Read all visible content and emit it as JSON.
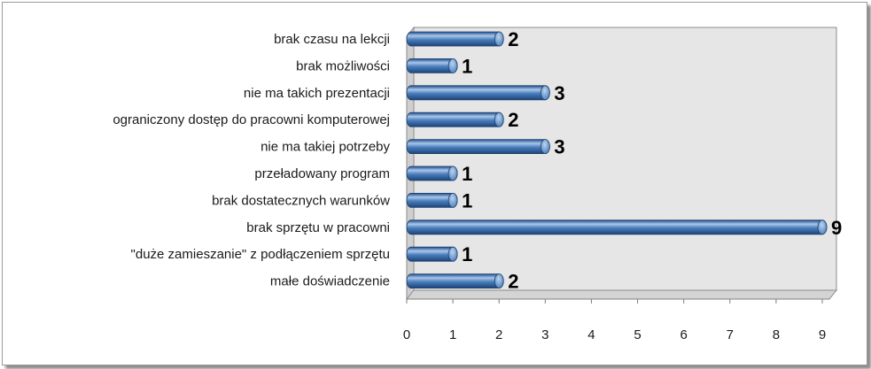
{
  "chart_data": {
    "type": "bar",
    "orientation": "horizontal",
    "style": "3d-cylinder",
    "categories": [
      "brak czasu na lekcji",
      "brak możliwości",
      "nie ma takich prezentacji",
      "ograniczony dostęp do pracowni komputerowej",
      "nie ma takiej potrzeby",
      "przeładowany program",
      "brak dostatecznych warunków",
      "brak sprzętu  w pracowni",
      "\"duże zamieszanie\" z podłączeniem sprzętu",
      "małe doświadczenie"
    ],
    "values": [
      2,
      1,
      3,
      2,
      3,
      1,
      1,
      9,
      1,
      2
    ],
    "data_labels": [
      "2",
      "1",
      "3",
      "2",
      "3",
      "1",
      "1",
      "9",
      "1",
      "2"
    ],
    "x_ticks": [
      "0",
      "1",
      "2",
      "3",
      "4",
      "5",
      "6",
      "7",
      "8",
      "9"
    ],
    "xlim": [
      0,
      9
    ],
    "title": "",
    "xlabel": "",
    "ylabel": "",
    "grid": false,
    "legend": "none",
    "colors": {
      "bar": "#4a7ebb",
      "bar_dark": "#1f4e8a",
      "bar_light": "#a9c6ec",
      "wall": "#e6e6e6",
      "floor": "#d4d4d4"
    }
  }
}
